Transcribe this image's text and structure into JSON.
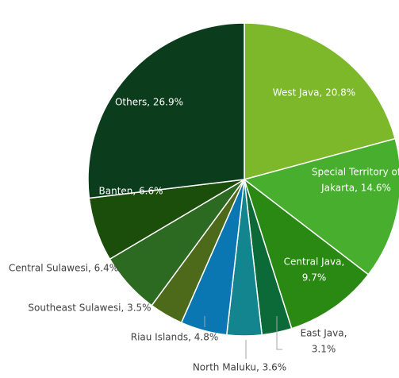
{
  "chart_data": {
    "type": "pie",
    "labels": [
      [
        "West Java, 20.8%"
      ],
      [
        "Special Territory of",
        "Jakarta, 14.6%"
      ],
      [
        "Central Java,",
        "9.7%"
      ],
      [
        "East Java,",
        "3.1%"
      ],
      [
        "North Maluku, 3.6%"
      ],
      [
        "Riau Islands, 4.8%"
      ],
      [
        "Southeast Sulawesi, 3.5%"
      ],
      [
        "Central Sulawesi, 6.4%"
      ],
      [
        "Banten, 6.6%"
      ],
      [
        "Others, 26.9%"
      ]
    ],
    "values": [
      20.8,
      14.6,
      9.7,
      3.1,
      3.6,
      4.8,
      3.5,
      6.4,
      6.6,
      26.9
    ],
    "colors": [
      "#7cb82a",
      "#48ae2e",
      "#2a8912",
      "#0c6a38",
      "#12858e",
      "#0a77b3",
      "#4c6a1a",
      "#2c6a22",
      "#1c4e0b",
      "#0b3c1b"
    ]
  }
}
